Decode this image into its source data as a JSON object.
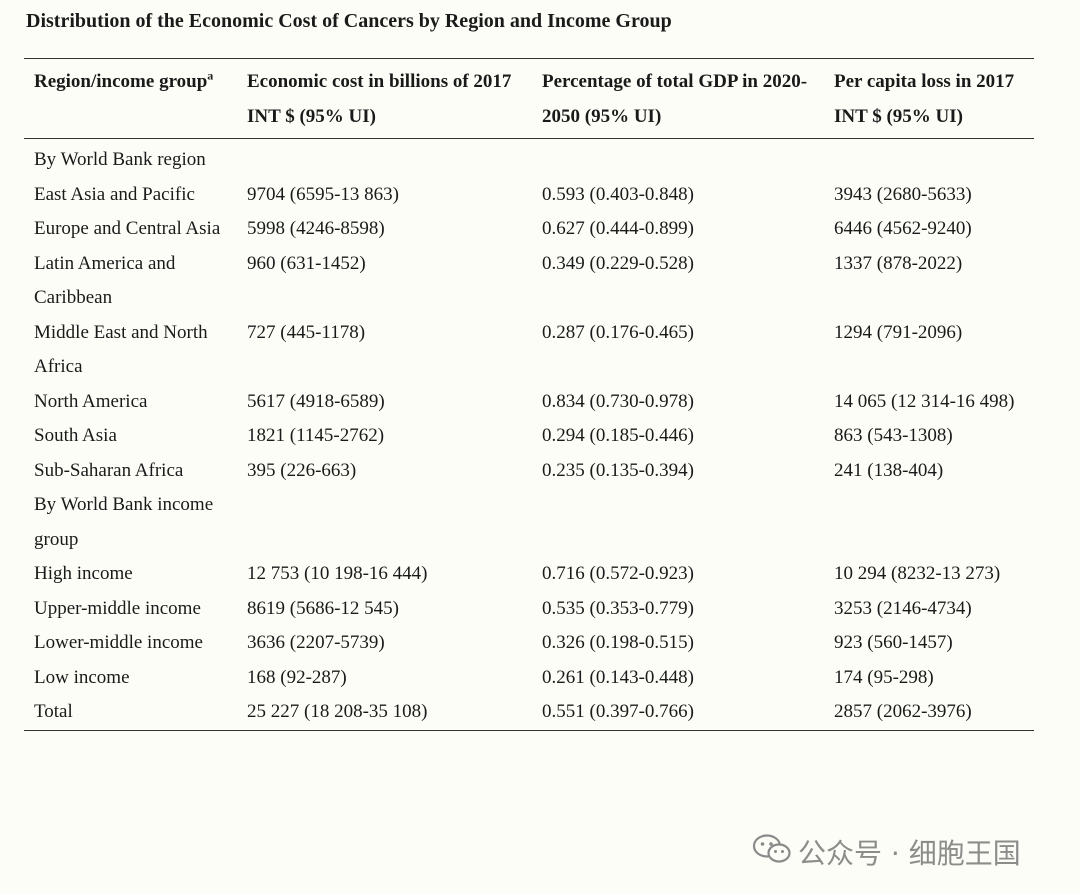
{
  "title": "Distribution of the Economic Cost of Cancers by Region and Income Group",
  "headers": {
    "c1": "Region/income group",
    "c1_sup": "a",
    "c2": "Economic cost in billions of 2017 INT $ (95% UI)",
    "c3": "Percentage of total GDP in 2020-2050 (95% UI)",
    "c4": "Per capita loss in 2017 INT $ (95% UI)"
  },
  "rows": [
    {
      "c1": "By World Bank region",
      "c2": "",
      "c3": "",
      "c4": ""
    },
    {
      "c1": "East Asia and Pacific",
      "c2": "9704 (6595-13 863)",
      "c3": "0.593 (0.403-0.848)",
      "c4": "3943 (2680-5633)"
    },
    {
      "c1": "Europe and Central Asia",
      "c2": "5998 (4246-8598)",
      "c3": "0.627 (0.444-0.899)",
      "c4": "6446 (4562-9240)"
    },
    {
      "c1": "Latin America and Caribbean",
      "c2": "960 (631-1452)",
      "c3": "0.349 (0.229-0.528)",
      "c4": "1337 (878-2022)"
    },
    {
      "c1": "Middle East and North Africa",
      "c2": "727 (445-1178)",
      "c3": "0.287 (0.176-0.465)",
      "c4": "1294 (791-2096)"
    },
    {
      "c1": "North America",
      "c2": "5617 (4918-6589)",
      "c3": "0.834 (0.730-0.978)",
      "c4": "14 065 (12 314-16 498)"
    },
    {
      "c1": "South Asia",
      "c2": "1821 (1145-2762)",
      "c3": "0.294 (0.185-0.446)",
      "c4": "863 (543-1308)"
    },
    {
      "c1": "Sub-Saharan Africa",
      "c2": "395 (226-663)",
      "c3": "0.235 (0.135-0.394)",
      "c4": "241 (138-404)"
    },
    {
      "c1": "By World Bank income group",
      "c2": "",
      "c3": "",
      "c4": ""
    },
    {
      "c1": "High income",
      "c2": "12 753 (10 198-16 444)",
      "c3": "0.716 (0.572-0.923)",
      "c4": "10 294 (8232-13 273)"
    },
    {
      "c1": "Upper-middle income",
      "c2": "8619 (5686-12 545)",
      "c3": "0.535 (0.353-0.779)",
      "c4": "3253 (2146-4734)"
    },
    {
      "c1": "Lower-middle income",
      "c2": "3636 (2207-5739)",
      "c3": "0.326 (0.198-0.515)",
      "c4": "923 (560-1457)"
    },
    {
      "c1": "Low income",
      "c2": "168 (92-287)",
      "c3": "0.261 (0.143-0.448)",
      "c4": "174 (95-298)"
    },
    {
      "c1": "Total",
      "c2": "25 227 (18 208-35 108)",
      "c3": "0.551 (0.397-0.766)",
      "c4": "2857 (2062-3976)"
    }
  ],
  "watermark": {
    "text": "公众号 · 细胞王国",
    "icon": "wechat-icon"
  }
}
